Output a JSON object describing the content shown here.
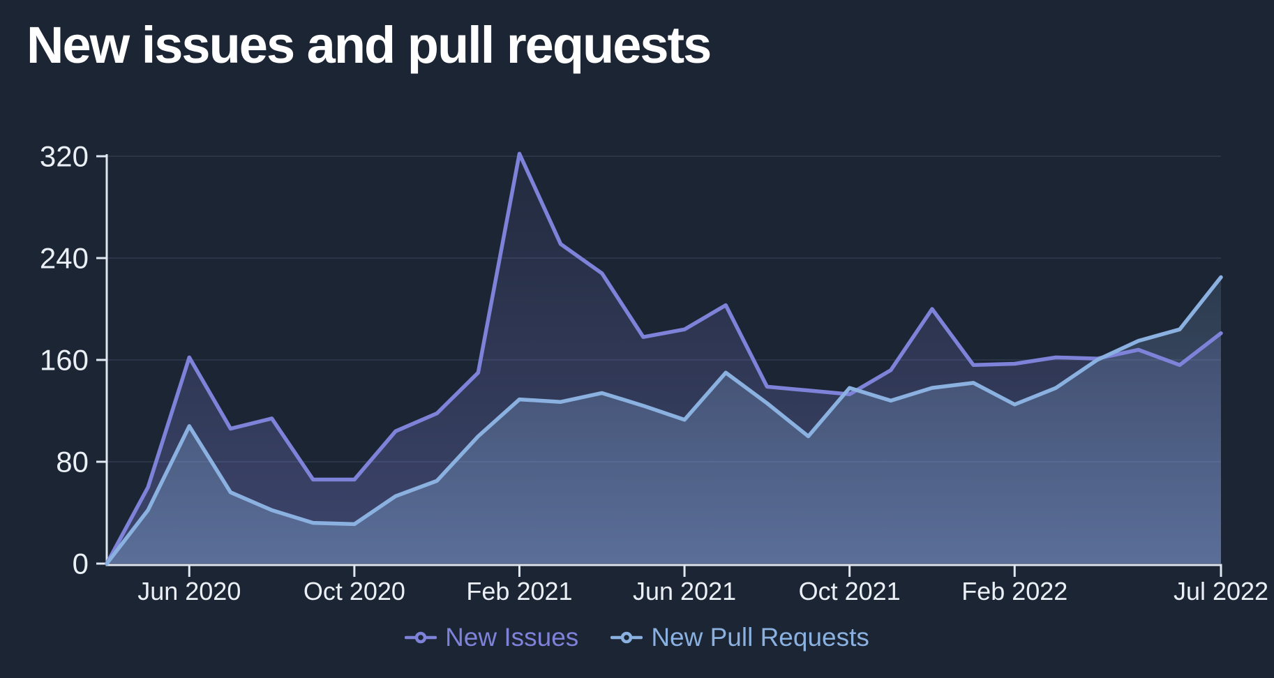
{
  "page": {
    "title": "New issues and pull requests",
    "background_color": "#1C2534"
  },
  "chart_data": {
    "type": "area",
    "title": "New issues and pull requests",
    "x": [
      "Apr 2020",
      "May 2020",
      "Jun 2020",
      "Jul 2020",
      "Aug 2020",
      "Sep 2020",
      "Oct 2020",
      "Nov 2020",
      "Dec 2020",
      "Jan 2021",
      "Feb 2021",
      "Mar 2021",
      "Apr 2021",
      "May 2021",
      "Jun 2021",
      "Jul 2021",
      "Aug 2021",
      "Sep 2021",
      "Oct 2021",
      "Nov 2021",
      "Dec 2021",
      "Jan 2022",
      "Feb 2022",
      "Mar 2022",
      "Apr 2022",
      "May 2022",
      "Jun 2022",
      "Jul 2022"
    ],
    "series": [
      {
        "name": "New Issues",
        "color": "#7E82D9",
        "values": [
          0,
          60,
          162,
          106,
          114,
          66,
          66,
          104,
          118,
          150,
          322,
          251,
          228,
          178,
          184,
          203,
          139,
          136,
          133,
          152,
          200,
          156,
          157,
          162,
          161,
          168,
          156,
          181
        ]
      },
      {
        "name": "New Pull Requests",
        "color": "#8AB1E0",
        "values": [
          0,
          42,
          108,
          56,
          42,
          32,
          31,
          53,
          65,
          100,
          129,
          127,
          134,
          124,
          113,
          150,
          126,
          100,
          138,
          128,
          138,
          142,
          125,
          138,
          160,
          175,
          184,
          225
        ]
      }
    ],
    "ylim": [
      0,
      320
    ],
    "yticks": [
      0,
      80,
      160,
      240,
      320
    ],
    "xtick_labels": [
      "Jun 2020",
      "Oct 2020",
      "Feb 2021",
      "Jun 2021",
      "Oct 2021",
      "Feb 2022",
      "Jul 2022"
    ],
    "xtick_indices": [
      2,
      6,
      10,
      14,
      18,
      22,
      27
    ],
    "grid": "horizontal-faint",
    "legend_position": "bottom-center",
    "axis_color": "#E2E8F2",
    "label_color": "#EBEFF6",
    "grid_color": "rgba(173,195,234,0.11)"
  },
  "legend": {
    "items": [
      {
        "label": "New Issues",
        "color": "#7E82D9"
      },
      {
        "label": "New Pull Requests",
        "color": "#8AB1E0"
      }
    ]
  }
}
